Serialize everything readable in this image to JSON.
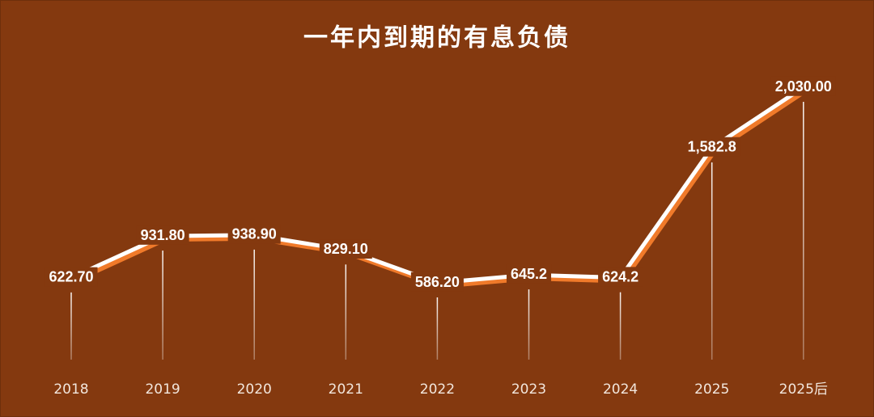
{
  "chart_data": {
    "type": "line",
    "title": "一年内到期的有息负债",
    "categories": [
      "2018",
      "2019",
      "2020",
      "2021",
      "2022",
      "2023",
      "2024",
      "2025",
      "2025后"
    ],
    "values": [
      622.7,
      931.8,
      938.9,
      829.1,
      586.2,
      645.2,
      624.2,
      1582.8,
      2030.0
    ],
    "value_labels": [
      "622.70",
      "931.80",
      "938.90",
      "829.10",
      "586.20",
      "645.2",
      "624.2",
      "1,582.8",
      "2,030.00"
    ],
    "color": "#ffffff"
  }
}
